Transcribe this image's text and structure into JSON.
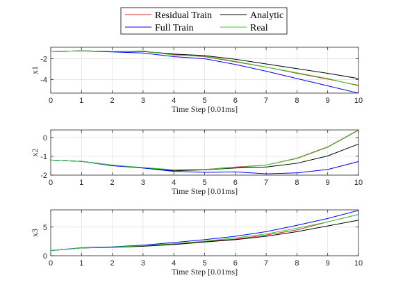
{
  "chart_data": {
    "type": "line",
    "legend": {
      "placement": "top",
      "entries": [
        {
          "label": "Residual Train",
          "color": "#d62728"
        },
        {
          "label": "Analytic",
          "color": "#000000"
        },
        {
          "label": "Full Train",
          "color": "#0000ff"
        },
        {
          "label": "Real",
          "color": "#33cc33"
        }
      ]
    },
    "grid": true,
    "panels": [
      {
        "ylabel": "x1",
        "xlabel": "Time Step [0.01ms]",
        "xlim": [
          0,
          10
        ],
        "ylim": [
          -5.3,
          -0.9
        ],
        "xticks": [
          "0",
          "1",
          "2",
          "3",
          "4",
          "5",
          "6",
          "7",
          "8",
          "9",
          "10"
        ],
        "yticks": [
          {
            "v": -2,
            "t": "-2"
          },
          {
            "v": -4,
            "t": "-4"
          }
        ],
        "x": [
          0,
          1,
          2,
          3,
          4,
          5,
          6,
          7,
          8,
          9,
          10
        ],
        "series": [
          {
            "name": "Residual Train",
            "color": "#d62728",
            "values": [
              -1.3,
              -1.25,
              -1.3,
              -1.3,
              -1.6,
              -1.8,
              -2.3,
              -2.8,
              -3.4,
              -3.95,
              -4.55
            ]
          },
          {
            "name": "Analytic",
            "color": "#000000",
            "values": [
              -1.3,
              -1.25,
              -1.3,
              -1.3,
              -1.55,
              -1.7,
              -2.05,
              -2.5,
              -2.95,
              -3.4,
              -3.9
            ]
          },
          {
            "name": "Full Train",
            "color": "#0000ff",
            "values": [
              -1.3,
              -1.25,
              -1.35,
              -1.45,
              -1.8,
              -2.0,
              -2.55,
              -3.2,
              -3.9,
              -4.6,
              -5.3
            ]
          },
          {
            "name": "Real",
            "color": "#33cc33",
            "values": [
              -1.3,
              -1.25,
              -1.3,
              -1.25,
              -1.65,
              -1.75,
              -2.25,
              -2.8,
              -3.35,
              -3.9,
              -4.6
            ]
          }
        ]
      },
      {
        "ylabel": "x2",
        "xlabel": "Time Step [0.01ms]",
        "xlim": [
          0,
          10
        ],
        "ylim": [
          -2,
          0.4
        ],
        "xticks": [
          "0",
          "1",
          "2",
          "3",
          "4",
          "5",
          "6",
          "7",
          "8",
          "9",
          "10"
        ],
        "yticks": [
          {
            "v": 0,
            "t": "0"
          },
          {
            "v": -1,
            "t": "-1"
          },
          {
            "v": -2,
            "t": "-2"
          }
        ],
        "x": [
          0,
          1,
          2,
          3,
          4,
          5,
          6,
          7,
          8,
          9,
          10
        ],
        "series": [
          {
            "name": "Residual Train",
            "color": "#d62728",
            "values": [
              -1.2,
              -1.27,
              -1.47,
              -1.6,
              -1.72,
              -1.7,
              -1.57,
              -1.47,
              -1.1,
              -0.5,
              0.4
            ]
          },
          {
            "name": "Analytic",
            "color": "#000000",
            "values": [
              -1.2,
              -1.27,
              -1.47,
              -1.62,
              -1.77,
              -1.72,
              -1.62,
              -1.57,
              -1.37,
              -0.98,
              -0.35
            ]
          },
          {
            "name": "Full Train",
            "color": "#0000ff",
            "values": [
              -1.2,
              -1.27,
              -1.5,
              -1.62,
              -1.8,
              -1.85,
              -1.83,
              -1.93,
              -1.88,
              -1.7,
              -1.28
            ]
          },
          {
            "name": "Real",
            "color": "#33cc33",
            "values": [
              -1.2,
              -1.27,
              -1.47,
              -1.6,
              -1.72,
              -1.7,
              -1.6,
              -1.47,
              -1.12,
              -0.52,
              0.38
            ]
          }
        ]
      },
      {
        "ylabel": "x3",
        "xlabel": "Time Step [0.01ms]",
        "xlim": [
          0,
          10
        ],
        "ylim": [
          0,
          8
        ],
        "xticks": [
          "0",
          "1",
          "2",
          "3",
          "4",
          "5",
          "6",
          "7",
          "8",
          "9",
          "10"
        ],
        "yticks": [
          {
            "v": 5,
            "t": "5"
          },
          {
            "v": 0,
            "t": "0"
          }
        ],
        "x": [
          0,
          1,
          2,
          3,
          4,
          5,
          6,
          7,
          8,
          9,
          10
        ],
        "series": [
          {
            "name": "Residual Train",
            "color": "#d62728",
            "values": [
              0.9,
              1.35,
              1.5,
              1.7,
              2.0,
              2.5,
              2.9,
              3.6,
              4.5,
              5.9,
              7.2
            ]
          },
          {
            "name": "Analytic",
            "color": "#000000",
            "values": [
              0.9,
              1.35,
              1.45,
              1.65,
              1.95,
              2.4,
              2.8,
              3.4,
              4.2,
              5.2,
              6.2
            ]
          },
          {
            "name": "Full Train",
            "color": "#0000ff",
            "values": [
              0.9,
              1.4,
              1.55,
              1.85,
              2.3,
              2.8,
              3.4,
              4.2,
              5.3,
              6.5,
              7.9
            ]
          },
          {
            "name": "Real",
            "color": "#33cc33",
            "values": [
              0.9,
              1.35,
              1.5,
              1.75,
              2.1,
              2.55,
              3.1,
              3.8,
              4.8,
              5.9,
              7.2
            ]
          }
        ]
      }
    ]
  }
}
